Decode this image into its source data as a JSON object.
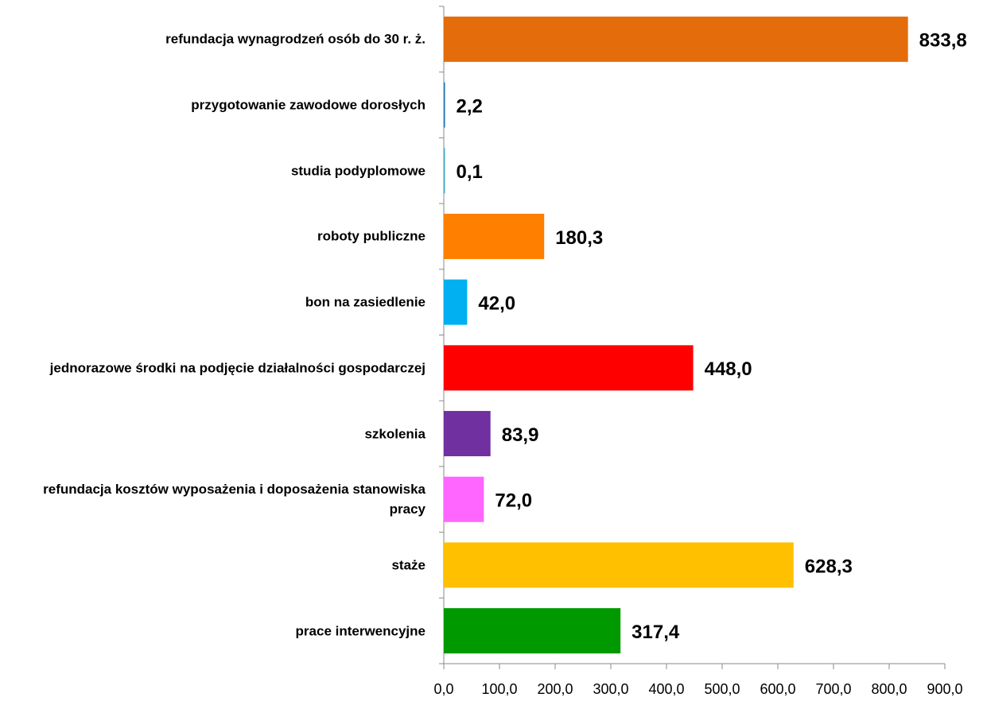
{
  "chart_data": {
    "type": "hbar",
    "categories": [
      "refundacja wynagrodzeń osób do 30 r. ż.",
      "przygotowanie zawodowe dorosłych",
      "studia podyplomowe",
      "roboty publiczne",
      "bon na zasiedlenie",
      "jednorazowe środki na podjęcie działalności gospodarczej",
      "szkolenia",
      "refundacja kosztów wyposażenia i doposażenia stanowiska pracy",
      "staże",
      "prace interwencyjne"
    ],
    "values": [
      833.8,
      2.2,
      0.1,
      180.3,
      42.0,
      448.0,
      83.9,
      72.0,
      628.3,
      317.4
    ],
    "value_labels": [
      "833,8",
      "2,2",
      "0,1",
      "180,3",
      "42,0",
      "448,0",
      "83,9",
      "72,0",
      "628,3",
      "317,4"
    ],
    "colors": [
      "#e46c0a",
      "#1f77b4",
      "#4bacc6",
      "#ff7f00",
      "#00b0f0",
      "#ff0000",
      "#7030a0",
      "#ff66ff",
      "#ffc000",
      "#009900"
    ],
    "xlim": [
      0,
      900
    ],
    "xticks": [
      {
        "value": 0,
        "label": "0,0"
      },
      {
        "value": 100,
        "label": "100,0"
      },
      {
        "value": 200,
        "label": "200,0"
      },
      {
        "value": 300,
        "label": "300,0"
      },
      {
        "value": 400,
        "label": "400,0"
      },
      {
        "value": 500,
        "label": "500,0"
      },
      {
        "value": 600,
        "label": "600,0"
      },
      {
        "value": 700,
        "label": "700,0"
      },
      {
        "value": 800,
        "label": "800,0"
      },
      {
        "value": 900,
        "label": "900,0"
      }
    ]
  }
}
